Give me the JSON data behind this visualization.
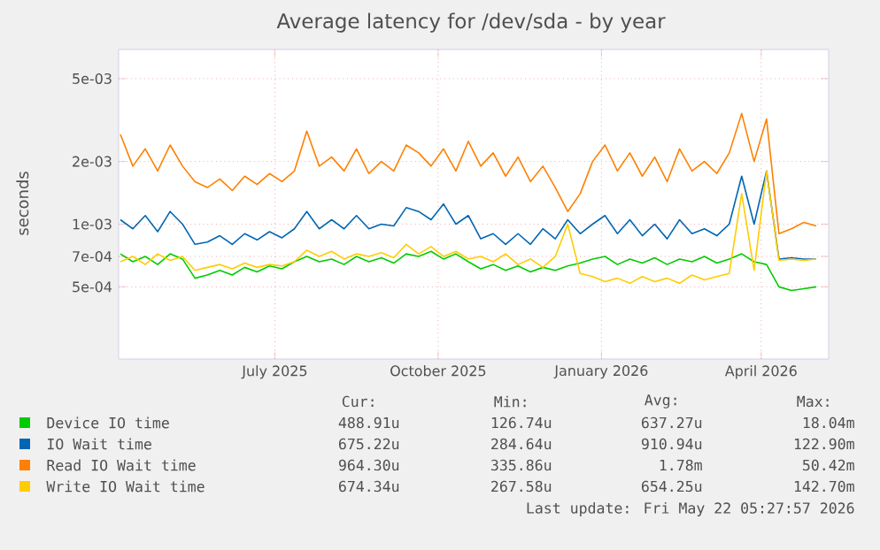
{
  "chart_data": {
    "type": "line",
    "title": "Average latency for /dev/sda - by year",
    "ylabel": "seconds",
    "log": "y",
    "grid": true,
    "legend": "bottom",
    "marker": "none",
    "line_style": "solid",
    "x": [
      "2025-04-20",
      "2025-04-27",
      "2025-05-04",
      "2025-05-11",
      "2025-05-18",
      "2025-05-25",
      "2025-06-01",
      "2025-06-08",
      "2025-06-15",
      "2025-06-22",
      "2025-06-29",
      "2025-07-06",
      "2025-07-13",
      "2025-07-20",
      "2025-07-27",
      "2025-08-03",
      "2025-08-10",
      "2025-08-17",
      "2025-08-24",
      "2025-08-31",
      "2025-09-07",
      "2025-09-14",
      "2025-09-21",
      "2025-09-28",
      "2025-10-05",
      "2025-10-12",
      "2025-10-19",
      "2025-10-26",
      "2025-11-02",
      "2025-11-09",
      "2025-11-16",
      "2025-11-23",
      "2025-11-30",
      "2025-12-07",
      "2025-12-14",
      "2025-12-21",
      "2025-12-28",
      "2026-01-04",
      "2026-01-11",
      "2026-01-18",
      "2026-01-25",
      "2026-02-01",
      "2026-02-08",
      "2026-02-15",
      "2026-02-22",
      "2026-03-01",
      "2026-03-08",
      "2026-03-15",
      "2026-03-22",
      "2026-03-29",
      "2026-04-05",
      "2026-04-12",
      "2026-04-19",
      "2026-04-26",
      "2026-05-03",
      "2026-05-10",
      "2026-05-17"
    ],
    "xlim": [
      "2025-04-19",
      "2026-05-24"
    ],
    "xticks": [
      {
        "value": "2025-07-16",
        "label": "July 2025"
      },
      {
        "value": "2025-10-16",
        "label": "October 2025"
      },
      {
        "value": "2026-01-16",
        "label": "January 2026"
      },
      {
        "value": "2026-04-16",
        "label": "April 2026"
      }
    ],
    "ylim": [
      0.000225,
      0.0069
    ],
    "yticks": [
      {
        "value": 0.0005,
        "label": "5e-04"
      },
      {
        "value": 0.0007,
        "label": "7e-04"
      },
      {
        "value": 0.001,
        "label": "1e-03"
      },
      {
        "value": 0.002,
        "label": "2e-03"
      },
      {
        "value": 0.005,
        "label": "5e-03"
      }
    ],
    "series": [
      {
        "name": "Device IO time",
        "color": "#00cc00",
        "values": [
          0.00072,
          0.00066,
          0.0007,
          0.00064,
          0.00072,
          0.00068,
          0.00055,
          0.00057,
          0.0006,
          0.00057,
          0.00062,
          0.00059,
          0.00063,
          0.00061,
          0.00066,
          0.0007,
          0.00066,
          0.00068,
          0.00064,
          0.0007,
          0.00066,
          0.00069,
          0.00065,
          0.00072,
          0.0007,
          0.00074,
          0.00068,
          0.00072,
          0.00066,
          0.00061,
          0.00064,
          0.0006,
          0.00063,
          0.00059,
          0.00062,
          0.0006,
          0.00063,
          0.00065,
          0.00068,
          0.0007,
          0.00064,
          0.00068,
          0.00065,
          0.00069,
          0.00064,
          0.00068,
          0.00066,
          0.0007,
          0.00065,
          0.00068,
          0.00072,
          0.00066,
          0.00064,
          0.0005,
          0.00048,
          0.00049,
          0.0005
        ]
      },
      {
        "name": "IO Wait time",
        "color": "#0066b3",
        "values": [
          0.00105,
          0.00095,
          0.0011,
          0.00092,
          0.00115,
          0.001,
          0.0008,
          0.00082,
          0.00088,
          0.0008,
          0.0009,
          0.00084,
          0.00092,
          0.00086,
          0.00095,
          0.00115,
          0.00095,
          0.00105,
          0.00095,
          0.0011,
          0.00095,
          0.001,
          0.00098,
          0.0012,
          0.00115,
          0.00105,
          0.00125,
          0.001,
          0.0011,
          0.00085,
          0.0009,
          0.0008,
          0.0009,
          0.0008,
          0.00095,
          0.00085,
          0.00105,
          0.0009,
          0.001,
          0.0011,
          0.0009,
          0.00105,
          0.00088,
          0.001,
          0.00085,
          0.00105,
          0.0009,
          0.00095,
          0.00088,
          0.001,
          0.0017,
          0.001,
          0.0018,
          0.00068,
          0.00069,
          0.00068,
          0.00068
        ]
      },
      {
        "name": "Read IO Wait time",
        "color": "#ff8000",
        "values": [
          0.0027,
          0.0019,
          0.0023,
          0.0018,
          0.0024,
          0.0019,
          0.0016,
          0.0015,
          0.00165,
          0.00145,
          0.0017,
          0.00155,
          0.00175,
          0.0016,
          0.0018,
          0.0028,
          0.0019,
          0.0021,
          0.0018,
          0.0023,
          0.00175,
          0.002,
          0.0018,
          0.0024,
          0.0022,
          0.0019,
          0.0023,
          0.0018,
          0.0025,
          0.0019,
          0.0022,
          0.0017,
          0.0021,
          0.0016,
          0.0019,
          0.0015,
          0.00115,
          0.0014,
          0.002,
          0.0024,
          0.0018,
          0.0022,
          0.0017,
          0.0021,
          0.0016,
          0.0023,
          0.0018,
          0.002,
          0.00175,
          0.0022,
          0.0034,
          0.002,
          0.0032,
          0.0009,
          0.00095,
          0.00102,
          0.00098
        ]
      },
      {
        "name": "Write IO Wait time",
        "color": "#ffcc00",
        "values": [
          0.00066,
          0.0007,
          0.00064,
          0.00072,
          0.00067,
          0.0007,
          0.0006,
          0.00062,
          0.00064,
          0.00061,
          0.00065,
          0.00062,
          0.00064,
          0.00063,
          0.00066,
          0.00075,
          0.0007,
          0.00074,
          0.00068,
          0.00072,
          0.0007,
          0.00073,
          0.00069,
          0.0008,
          0.00072,
          0.00078,
          0.0007,
          0.00074,
          0.00068,
          0.0007,
          0.00066,
          0.00072,
          0.00064,
          0.00068,
          0.00062,
          0.0007,
          0.001,
          0.00058,
          0.00056,
          0.00053,
          0.00055,
          0.00052,
          0.00056,
          0.00053,
          0.00055,
          0.00052,
          0.00057,
          0.00054,
          0.00056,
          0.00058,
          0.0014,
          0.0006,
          0.0018,
          0.00067,
          0.00068,
          0.00067,
          0.00068
        ]
      }
    ],
    "annotations": [
      "Cur:",
      "Min:",
      "Avg:",
      "Max:",
      "488.91u",
      "126.74u",
      "637.27u",
      "18.04m",
      "675.22u",
      "284.64u",
      "910.94u",
      "122.90m",
      "964.30u",
      "335.86u",
      "1.78m",
      "50.42m",
      "674.34u",
      "267.58u",
      "654.25u",
      "142.70m",
      "Last update: Fri May 22 05:27:57 2026"
    ]
  }
}
